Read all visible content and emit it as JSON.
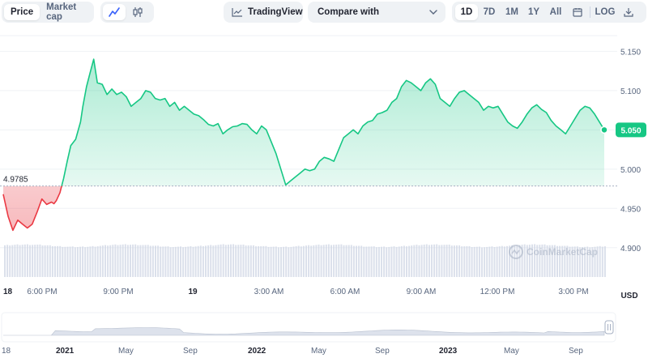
{
  "toolbar": {
    "price_label": "Price",
    "market_cap_label": "Market cap",
    "tradingview_label": "TradingView",
    "compare_label": "Compare with",
    "ranges": [
      "1D",
      "7D",
      "1M",
      "1Y",
      "All"
    ],
    "active_range": "1D",
    "log_label": "LOG",
    "icons": [
      "line-chart-icon",
      "candlestick-icon",
      "trend-icon",
      "chevron-down-icon",
      "calendar-icon",
      "download-icon"
    ]
  },
  "chart_data": {
    "type": "area",
    "reference_value": 4.9785,
    "reference_label": "4.9785",
    "current_value": 5.05,
    "current_label": "5.050",
    "ylim": [
      4.875,
      5.17
    ],
    "y_ticks": [
      {
        "value": 5.15,
        "label": "5.150"
      },
      {
        "value": 5.1,
        "label": "5.100"
      },
      {
        "value": 5.05,
        "label": "5.050"
      },
      {
        "value": 5.0,
        "label": "5.000"
      },
      {
        "value": 4.95,
        "label": "4.950"
      },
      {
        "value": 4.9,
        "label": "4.900"
      }
    ],
    "y_unit": "USD",
    "x_ticks": [
      "18",
      "6:00 PM",
      "9:00 PM",
      "19",
      "3:00 AM",
      "6:00 AM",
      "9:00 AM",
      "12:00 PM",
      "3:00 PM"
    ],
    "colors": {
      "up": "#16c784",
      "down": "#ea3943",
      "reference": "#a6b0c3",
      "volume": "#cfd6e4"
    },
    "series": [
      {
        "x": [
          0,
          0.2,
          0.4,
          0.6,
          0.8,
          1.0,
          1.2,
          1.4,
          1.6,
          1.8,
          2.0,
          2.1,
          2.2,
          2.35,
          2.5,
          2.65,
          2.8,
          3.0,
          3.2,
          3.3,
          3.45,
          3.6,
          3.75,
          3.9,
          4.1,
          4.3,
          4.5,
          4.7,
          4.9,
          5.1,
          5.3,
          5.5,
          5.7,
          5.9,
          6.1,
          6.3,
          6.5,
          6.7,
          6.9,
          7.1,
          7.3,
          7.5,
          7.7,
          7.9,
          8.1,
          8.3,
          8.5,
          8.7,
          8.9,
          9.1,
          9.3,
          9.5,
          9.7,
          9.9,
          10.1,
          10.3,
          10.5,
          10.7,
          10.9,
          11.1,
          11.3,
          11.5,
          11.7,
          11.9,
          12.1,
          12.3,
          12.5,
          12.7,
          12.9,
          13.1,
          13.3,
          13.5,
          13.7,
          13.9,
          14.1,
          14.3,
          14.5,
          14.7,
          14.9,
          15.1,
          15.3,
          15.5,
          15.7,
          15.9,
          16.1,
          16.3,
          16.5,
          16.7,
          16.9,
          17.1,
          17.3,
          17.5,
          17.7,
          17.9,
          18.1,
          18.3,
          18.5,
          18.7,
          18.9,
          19.1,
          19.3,
          19.5,
          19.7,
          19.9,
          20.1,
          20.3,
          20.5,
          20.7,
          20.9,
          21.1,
          21.3,
          21.5,
          21.7,
          21.9,
          22.1,
          22.3,
          22.5,
          22.7,
          22.9,
          23.1,
          23.3,
          23.5,
          23.7,
          23.9,
          24.1,
          24.3,
          24.5,
          24.7,
          24.9
        ],
        "values": [
          4.968,
          4.94,
          4.922,
          4.935,
          4.93,
          4.925,
          4.93,
          4.945,
          4.962,
          4.955,
          4.958,
          4.956,
          4.96,
          4.97,
          4.988,
          5.01,
          5.03,
          5.038,
          5.06,
          5.08,
          5.105,
          5.123,
          5.14,
          5.11,
          5.108,
          5.095,
          5.102,
          5.095,
          5.098,
          5.092,
          5.08,
          5.085,
          5.09,
          5.1,
          5.098,
          5.09,
          5.088,
          5.09,
          5.08,
          5.085,
          5.075,
          5.08,
          5.075,
          5.07,
          5.068,
          5.063,
          5.057,
          5.055,
          5.058,
          5.045,
          5.05,
          5.054,
          5.055,
          5.058,
          5.057,
          5.05,
          5.045,
          5.055,
          5.05,
          5.035,
          5.02,
          5.0,
          4.98,
          4.985,
          4.99,
          4.995,
          5.0,
          4.998,
          5.0,
          5.01,
          5.015,
          5.013,
          5.01,
          5.025,
          5.04,
          5.045,
          5.05,
          5.045,
          5.055,
          5.06,
          5.062,
          5.07,
          5.072,
          5.075,
          5.085,
          5.09,
          5.105,
          5.113,
          5.11,
          5.105,
          5.1,
          5.11,
          5.115,
          5.108,
          5.09,
          5.085,
          5.08,
          5.09,
          5.098,
          5.1,
          5.095,
          5.09,
          5.085,
          5.075,
          5.08,
          5.078,
          5.08,
          5.07,
          5.06,
          5.055,
          5.052,
          5.06,
          5.07,
          5.078,
          5.082,
          5.076,
          5.072,
          5.062,
          5.055,
          5.05,
          5.045,
          5.055,
          5.065,
          5.075,
          5.08,
          5.078,
          5.07,
          5.06,
          5.05
        ]
      }
    ]
  },
  "navigator": {
    "labels": [
      "18",
      "2021",
      "May",
      "Sep",
      "2022",
      "May",
      "Sep",
      "2023",
      "May",
      "Sep"
    ],
    "bold_labels": [
      "2021",
      "2022",
      "2023"
    ]
  },
  "watermark": "CoinMarketCap"
}
